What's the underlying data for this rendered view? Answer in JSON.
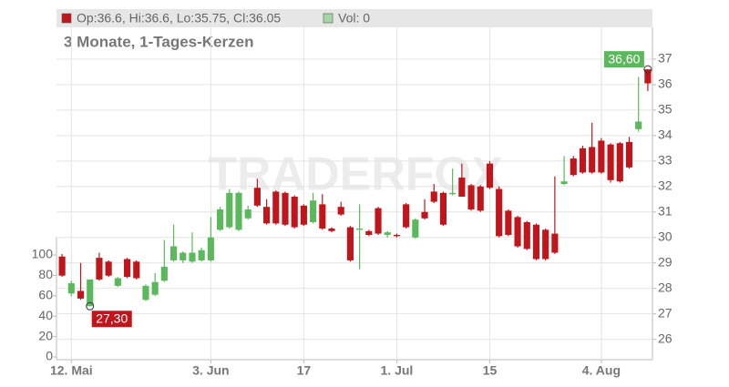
{
  "chart_data": {
    "type": "candlestick",
    "legend": [
      "Op:36.6, Hi:36.6, Lo:35.75, Cl:36.05",
      "Vol: 0"
    ],
    "subtitle": "3 Monate, 1-Tages-Kerzen",
    "watermark": "TRADERFOX",
    "open": [
      29.25,
      27.8,
      27.9,
      27.3,
      29.2,
      29.05,
      28.1,
      29.15,
      29.05,
      27.55,
      27.75,
      28.3,
      29.1,
      29.1,
      29.05,
      29.1,
      29.1,
      30.3,
      30.4,
      30.3,
      30.75,
      31.95,
      31.2,
      31.8,
      31.75,
      31.6,
      31.25,
      30.6,
      31.3,
      30.35,
      31.2,
      30.4,
      30.3,
      30.25,
      31.15,
      30.1,
      30.1,
      31.3,
      30.0,
      31.0,
      31.8,
      31.75,
      31.7,
      32.35,
      32.05,
      32.0,
      32.9,
      31.9,
      31.05,
      30.8,
      30.6,
      30.5,
      30.3,
      30.15,
      32.1,
      33.1,
      33.5,
      33.55,
      33.8,
      33.65,
      33.7,
      33.75,
      34.25,
      36.6
    ],
    "high": [
      29.35,
      28.3,
      29.0,
      28.35,
      29.4,
      29.1,
      28.45,
      29.2,
      29.1,
      28.15,
      28.6,
      29.9,
      30.5,
      29.45,
      30.2,
      29.6,
      30.8,
      31.2,
      31.9,
      31.8,
      31.25,
      32.3,
      31.5,
      31.85,
      31.8,
      31.65,
      31.3,
      31.75,
      31.7,
      30.4,
      31.4,
      30.45,
      31.3,
      30.3,
      31.2,
      30.25,
      30.15,
      31.35,
      30.75,
      31.5,
      32.1,
      31.8,
      32.7,
      32.9,
      32.1,
      32.05,
      33.0,
      32.0,
      31.1,
      30.85,
      30.65,
      30.55,
      30.35,
      32.4,
      33.2,
      33.2,
      33.6,
      34.5,
      33.9,
      33.7,
      33.75,
      33.95,
      36.3,
      36.6
    ],
    "low": [
      28.45,
      27.7,
      27.55,
      27.3,
      28.3,
      28.45,
      28.05,
      28.4,
      28.35,
      27.5,
      27.7,
      28.25,
      29.05,
      29.0,
      29.0,
      29.05,
      29.05,
      30.25,
      30.35,
      30.25,
      30.7,
      31.2,
      30.5,
      30.5,
      30.45,
      30.35,
      30.45,
      30.55,
      30.3,
      30.2,
      30.85,
      29.05,
      28.75,
      30.05,
      30.1,
      30.0,
      30.0,
      30.35,
      29.95,
      30.7,
      31.35,
      30.45,
      31.65,
      31.6,
      31.05,
      31.0,
      31.9,
      30.0,
      30.05,
      29.6,
      29.5,
      29.1,
      29.1,
      29.35,
      32.05,
      32.4,
      32.5,
      32.5,
      32.5,
      32.15,
      32.15,
      32.7,
      34.15,
      35.75
    ],
    "close": [
      28.5,
      28.2,
      27.6,
      28.35,
      28.35,
      28.5,
      28.4,
      28.45,
      28.4,
      28.1,
      28.25,
      28.85,
      29.65,
      29.4,
      29.4,
      29.5,
      30.0,
      31.1,
      31.75,
      31.75,
      31.1,
      31.25,
      30.55,
      30.55,
      30.5,
      30.4,
      30.5,
      31.45,
      30.35,
      30.25,
      30.9,
      29.1,
      30.35,
      30.1,
      30.15,
      30.2,
      30.05,
      30.4,
      30.7,
      30.75,
      31.4,
      30.5,
      31.75,
      31.6,
      31.1,
      31.05,
      31.95,
      30.05,
      30.1,
      29.65,
      29.55,
      29.15,
      29.15,
      29.4,
      32.2,
      32.45,
      32.55,
      32.55,
      32.55,
      32.25,
      32.2,
      32.75,
      34.55,
      36.05
    ],
    "up_color": "#5cb85c",
    "down_color": "#c0161b",
    "high_label": "36,60",
    "low_label": "27,30",
    "xlim": [
      -0.6,
      63.5
    ],
    "xticks": [
      {
        "value": 1,
        "label": "12. Mai"
      },
      {
        "value": 16,
        "label": "3. Jun"
      },
      {
        "value": 26,
        "label": "17"
      },
      {
        "value": 36,
        "label": "1. Jul"
      },
      {
        "value": 46,
        "label": "15"
      },
      {
        "value": 58,
        "label": "4. Aug"
      }
    ],
    "ylim": [
      25.2,
      38.25
    ],
    "yticks": [
      26,
      27,
      28,
      29,
      30,
      31,
      32,
      33,
      34,
      35,
      36,
      37
    ],
    "vol_ylim": [
      0,
      100
    ],
    "vol_ticks": [
      0,
      20,
      40,
      60,
      80,
      100
    ],
    "grid": true
  }
}
